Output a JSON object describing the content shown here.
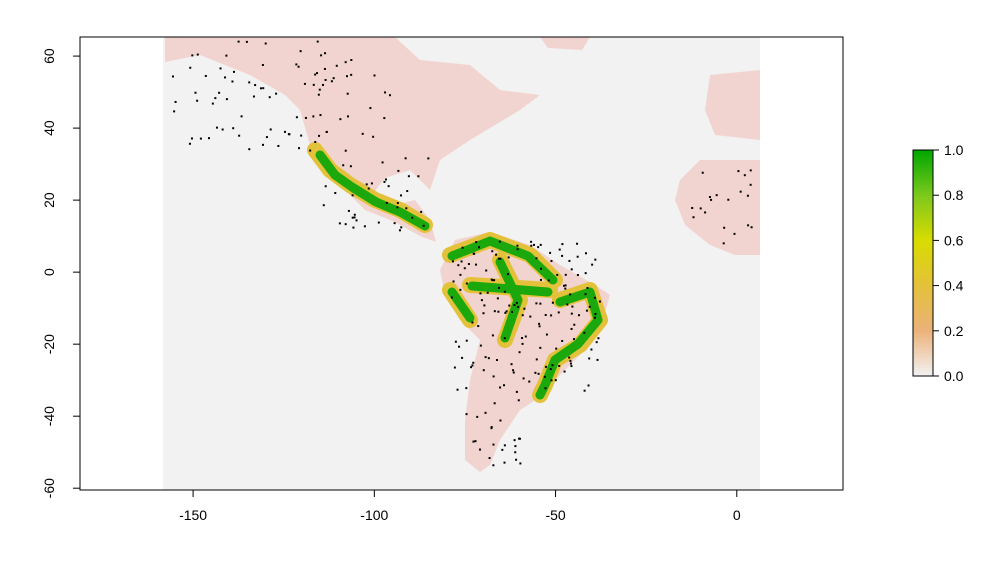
{
  "chart_data": {
    "type": "raster",
    "xlim": [
      -181.2,
      29.3
    ],
    "ylim": [
      -60.5,
      65.3
    ],
    "xticks": [
      -150,
      -100,
      -50,
      0
    ],
    "yticks": [
      -60,
      -40,
      -20,
      0,
      20,
      40,
      60
    ],
    "background": "#f2f2f2",
    "colorbar": {
      "lim": [
        0,
        1
      ],
      "ticks": [
        {
          "value": 0,
          "label": "0.0"
        },
        0.2,
        0.4,
        0.6,
        0.8,
        {
          "value": 1,
          "label": "1.0"
        }
      ],
      "colors": [
        "#f2f2f2",
        "#ebb27a",
        "#e4c13a",
        "#d8dc00",
        "#7cc81d",
        "#00a600"
      ]
    }
  }
}
